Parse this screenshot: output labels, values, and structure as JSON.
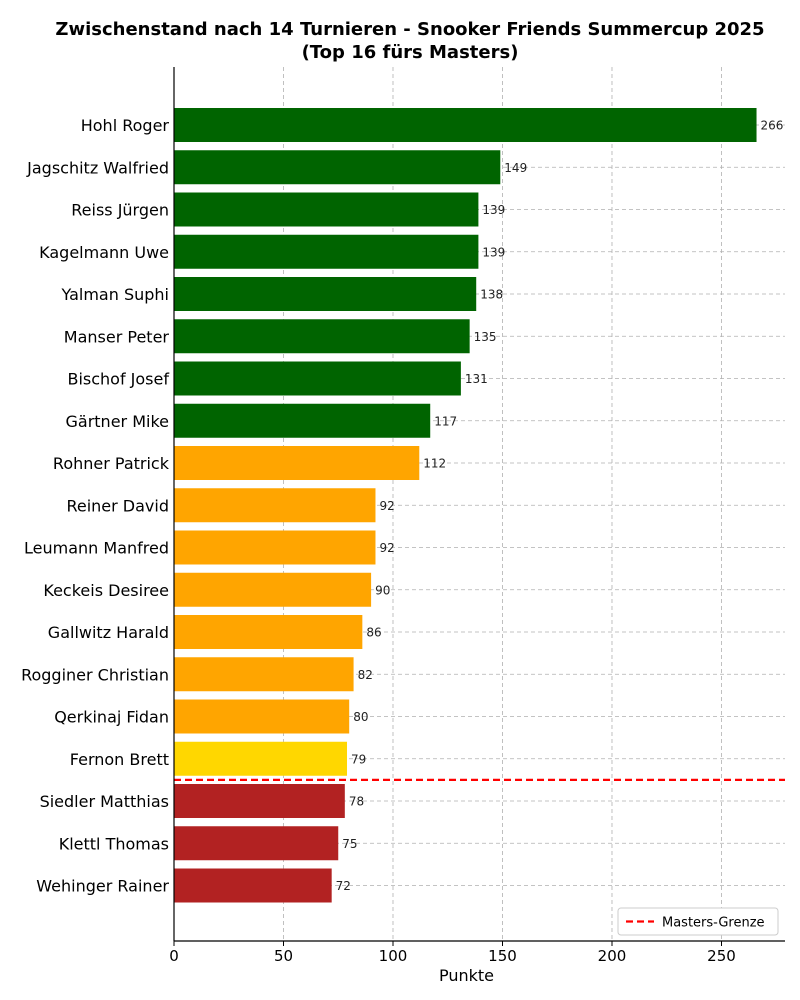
{
  "chart_data": {
    "type": "bar",
    "orientation": "horizontal",
    "title": "Zwischenstand nach 14 Turnieren - Snooker Friends Summercup 2025",
    "subtitle": "(Top 16 fürs Masters)",
    "xlabel": "Punkte",
    "ylabel": "",
    "xlim": [
      0,
      279
    ],
    "xticks": [
      0,
      50,
      100,
      150,
      200,
      250
    ],
    "grid": true,
    "legend_position": "bottom-right",
    "categories": [
      "Hohl Roger",
      "Jagschitz Walfried",
      "Reiss Jürgen",
      "Kagelmann Uwe",
      "Yalman Suphi",
      "Manser Peter",
      "Bischof Josef",
      "Gärtner Mike",
      "Rohner Patrick",
      "Reiner David",
      "Leumann Manfred",
      "Keckeis Desiree",
      "Gallwitz Harald",
      "Rogginer Christian",
      "Qerkinaj Fidan",
      "Fernon Brett",
      "Siedler Matthias",
      "Klettl Thomas",
      "Wehinger Rainer"
    ],
    "values": [
      266,
      149,
      139,
      139,
      138,
      135,
      131,
      117,
      112,
      92,
      92,
      90,
      86,
      82,
      80,
      79,
      78,
      75,
      72
    ],
    "bar_colors": [
      "#006400",
      "#006400",
      "#006400",
      "#006400",
      "#006400",
      "#006400",
      "#006400",
      "#006400",
      "#FFA500",
      "#FFA500",
      "#FFA500",
      "#FFA500",
      "#FFA500",
      "#FFA500",
      "#FFA500",
      "#FFD700",
      "#B22222",
      "#B22222",
      "#B22222"
    ],
    "threshold": {
      "label": "Masters-Grenze",
      "after_rank": 16,
      "color": "#FF0000",
      "style": "dashed"
    }
  }
}
